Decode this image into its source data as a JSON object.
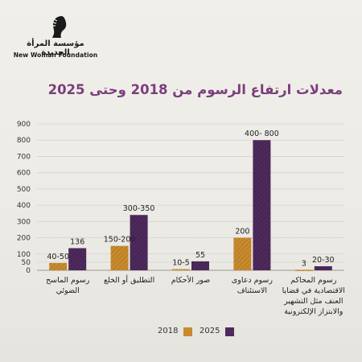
{
  "logo": {
    "name_ar": "مؤسسة المرأة الجديدة",
    "name_en": "New Woman Foundation",
    "icon": "woman-profile-logo"
  },
  "colors": {
    "y2018": "#c88a2e",
    "y2025": "#4e2a5c",
    "title": "#7a3e7c",
    "grid": "#d6d3cc"
  },
  "chart_data": {
    "type": "bar",
    "title": "معدلات ارتفاع الرسوم من 2018 وحتى 2025",
    "ylim": [
      0,
      900
    ],
    "yticks": [
      0,
      50,
      100,
      200,
      300,
      400,
      500,
      600,
      700,
      800,
      900
    ],
    "grid": true,
    "legend_position": "bottom-center",
    "categories": [
      "رسوم الماسح الضوئي",
      "التطليق أو الخلع",
      "صور الأحكام",
      "رسوم دعاوى الاستئناف",
      "رسوم المحاكم الاقتصادية في قضايا العنف مثل التشهير والابتزاز الإلكترونية"
    ],
    "series": [
      {
        "name": "2018",
        "values": [
          45,
          150,
          7,
          200,
          3
        ],
        "labels": [
          "40-50",
          "150-200",
          "10-5",
          "200",
          "3"
        ]
      },
      {
        "name": "2025",
        "values": [
          136,
          340,
          55,
          800,
          25
        ],
        "labels": [
          "136",
          "300-350",
          "55",
          "400- 800",
          "20-30"
        ]
      }
    ]
  }
}
